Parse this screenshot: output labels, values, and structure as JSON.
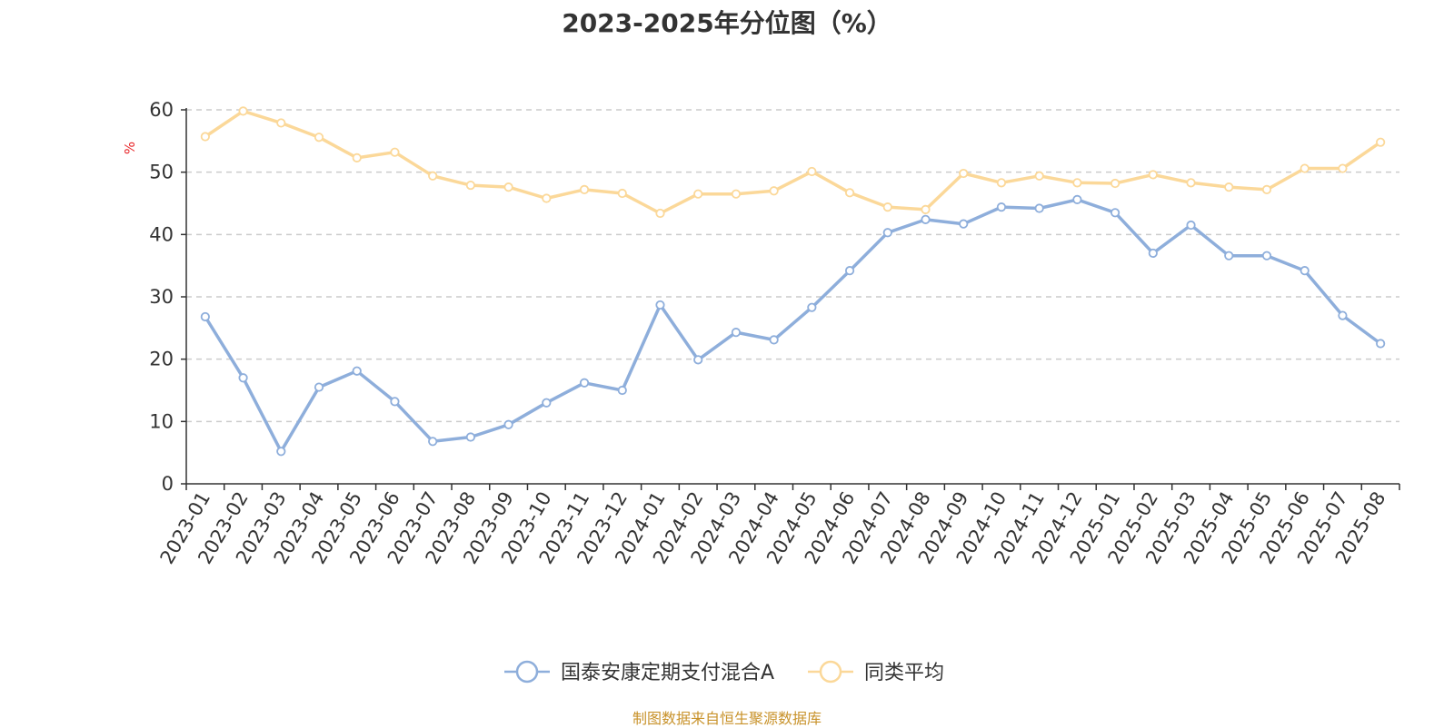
{
  "chart_data": {
    "type": "line",
    "title": "2023-2025年分位图（%）",
    "ylabel": "%",
    "ylim": [
      0,
      60
    ],
    "yticks": [
      0,
      10,
      20,
      30,
      40,
      50,
      60
    ],
    "grid": true,
    "legend_position": "bottom-center",
    "categories": [
      "2023-01",
      "2023-02",
      "2023-03",
      "2023-04",
      "2023-05",
      "2023-06",
      "2023-07",
      "2023-08",
      "2023-09",
      "2023-10",
      "2023-11",
      "2023-12",
      "2024-01",
      "2024-02",
      "2024-03",
      "2024-04",
      "2024-05",
      "2024-06",
      "2024-07",
      "2024-08",
      "2024-09",
      "2024-10",
      "2024-11",
      "2024-12",
      "2025-01",
      "2025-02",
      "2025-03",
      "2025-04",
      "2025-05",
      "2025-06",
      "2025-07",
      "2025-08"
    ],
    "series": [
      {
        "name": "国泰安康定期支付混合A",
        "color": "#8eaedb",
        "values": [
          26.8,
          17.0,
          5.2,
          15.5,
          18.1,
          13.2,
          6.8,
          7.5,
          9.5,
          13.0,
          16.2,
          15.0,
          28.7,
          19.9,
          24.3,
          23.1,
          28.3,
          34.2,
          40.3,
          42.4,
          41.7,
          44.4,
          44.2,
          45.6,
          43.5,
          37.0,
          41.5,
          36.6,
          36.6,
          34.2,
          27.0,
          22.5
        ]
      },
      {
        "name": "同类平均",
        "color": "#fbd899",
        "values": [
          55.7,
          59.8,
          57.9,
          55.6,
          52.3,
          53.2,
          49.4,
          47.9,
          47.6,
          45.8,
          47.2,
          46.6,
          43.4,
          46.5,
          46.5,
          47.0,
          50.1,
          46.7,
          44.4,
          44.0,
          49.8,
          48.3,
          49.4,
          48.3,
          48.2,
          49.6,
          48.3,
          47.6,
          47.2,
          50.6,
          50.6,
          54.8
        ]
      }
    ]
  },
  "footer": {
    "source": "制图数据来自恒生聚源数据库",
    "source_color": "#c8922a"
  },
  "unit_color": "#e8262a"
}
